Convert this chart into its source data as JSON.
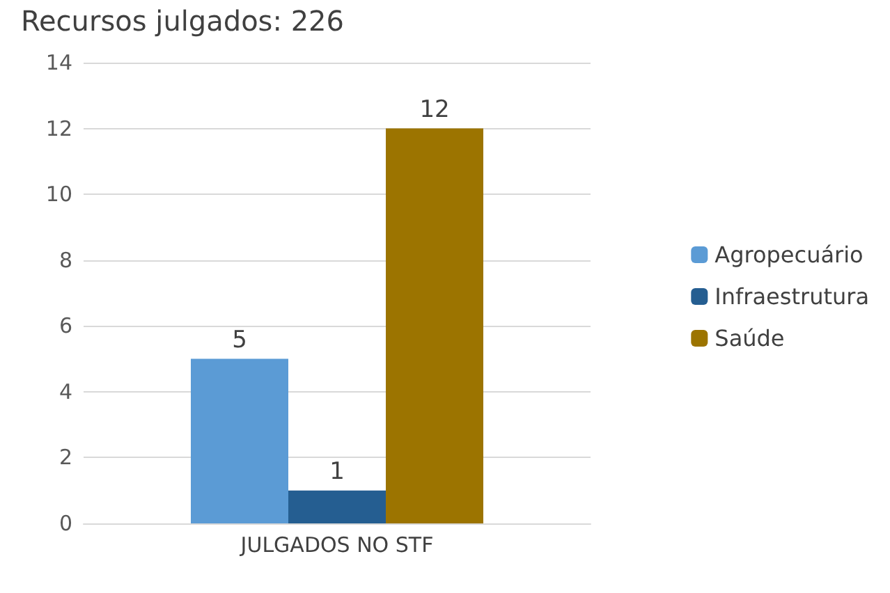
{
  "chart_data": {
    "type": "bar",
    "title": "Recursos julgados: 226",
    "categories": [
      "JULGADOS NO STF"
    ],
    "series": [
      {
        "name": "Agropecuário",
        "color": "#5b9bd5",
        "values": [
          5
        ]
      },
      {
        "name": "Infraestrutura",
        "color": "#255e91",
        "values": [
          1
        ]
      },
      {
        "name": "Saúde",
        "color": "#9c7400",
        "values": [
          12
        ]
      }
    ],
    "ylim": [
      0,
      14
    ],
    "yticks": [
      0,
      2,
      4,
      6,
      8,
      10,
      12,
      14
    ],
    "grid": "y",
    "legend": "right",
    "data_labels": true
  }
}
